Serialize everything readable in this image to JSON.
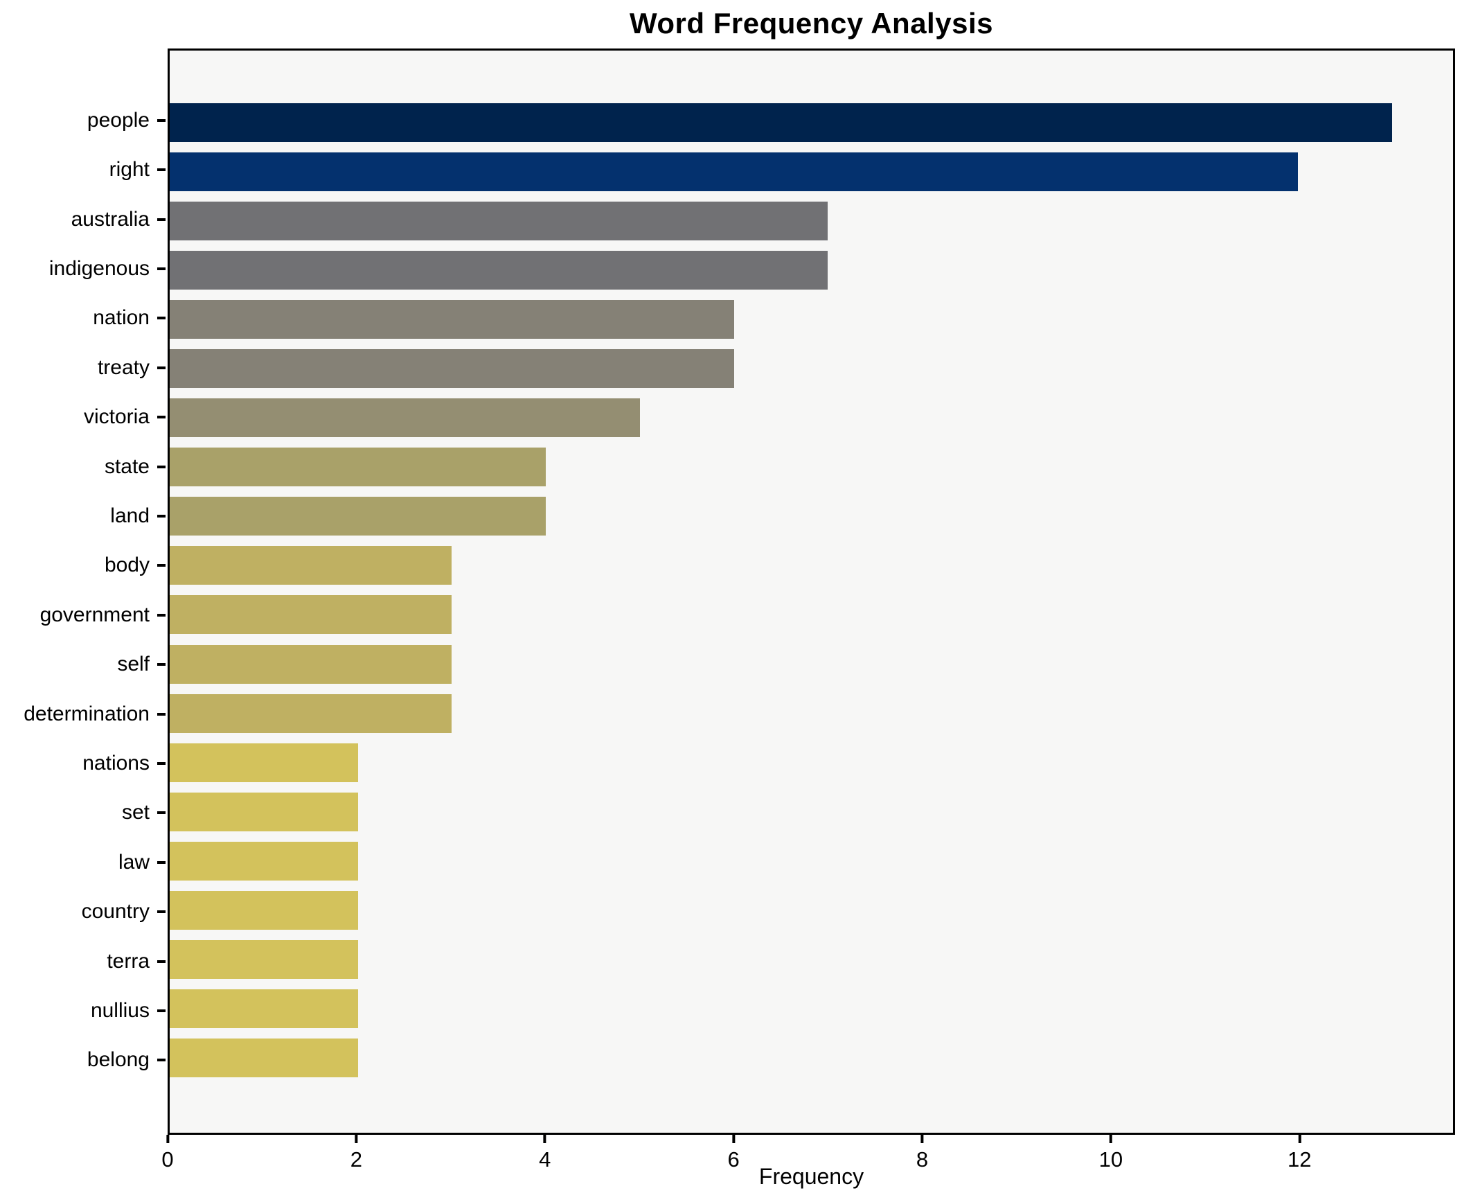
{
  "title": "Word Frequency Analysis",
  "chart_data": {
    "type": "bar",
    "orientation": "horizontal",
    "title": "Word Frequency Analysis",
    "xlabel": "Frequency",
    "ylabel": "",
    "categories": [
      "people",
      "right",
      "australia",
      "indigenous",
      "nation",
      "treaty",
      "victoria",
      "state",
      "land",
      "body",
      "government",
      "self",
      "determination",
      "nations",
      "set",
      "law",
      "country",
      "terra",
      "nullius",
      "belong"
    ],
    "values": [
      13,
      12,
      7,
      7,
      6,
      6,
      5,
      4,
      4,
      3,
      3,
      3,
      3,
      2,
      2,
      2,
      2,
      2,
      2,
      2
    ],
    "bar_colors": [
      "#00234d",
      "#04316e",
      "#717174",
      "#717174",
      "#858176",
      "#858176",
      "#948e72",
      "#a9a169",
      "#a9a169",
      "#bfb062",
      "#bfb062",
      "#bfb062",
      "#bfb062",
      "#d3c25c",
      "#d3c25c",
      "#d3c25c",
      "#d3c25c",
      "#d3c25c",
      "#d3c25c",
      "#d3c25c"
    ],
    "xlim": [
      0,
      13.65
    ],
    "x_ticks": [
      0,
      2,
      4,
      6,
      8,
      10,
      12
    ],
    "grid": "off",
    "legend": "none",
    "colormap": "cividis",
    "plot_bg": "#f7f7f6",
    "figure_bg": "#ffffff",
    "spine_color": "#000000"
  }
}
